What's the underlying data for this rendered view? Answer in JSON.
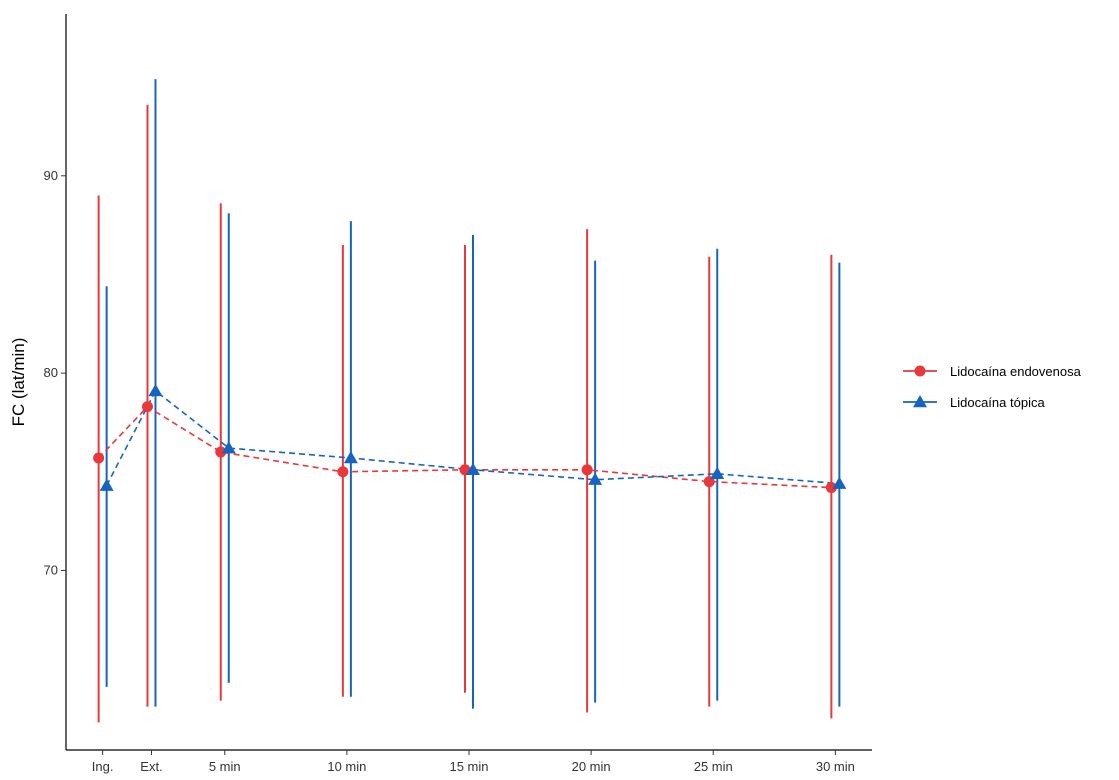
{
  "chart_data": {
    "type": "line",
    "title": "",
    "xlabel": "",
    "ylabel": "FC (lat/min)",
    "categories": [
      "Ing.",
      "Ext.",
      "5 min",
      "10 min",
      "15 min",
      "20 min",
      "25 min",
      "30 min"
    ],
    "x_values": [
      0,
      2,
      5,
      10,
      15,
      20,
      25,
      30
    ],
    "xlim": [
      -1.5,
      31.5
    ],
    "ylim": [
      60.9,
      98.2
    ],
    "yticks": [
      70,
      80,
      90
    ],
    "grid": false,
    "legend_position": "right",
    "error_bars": true,
    "series": [
      {
        "name": "Lidocaína endovenosa",
        "color": "#e8383b",
        "marker": "circle",
        "line_style": "dashed",
        "values": [
          75.7,
          78.3,
          76.0,
          75.0,
          75.1,
          75.1,
          74.5,
          74.2
        ],
        "lower": [
          62.3,
          63.1,
          63.4,
          63.6,
          63.8,
          62.8,
          63.1,
          62.5
        ],
        "upper": [
          89.0,
          93.6,
          88.6,
          86.5,
          86.5,
          87.3,
          85.9,
          86.0
        ]
      },
      {
        "name": "Lidocaína tópica",
        "color": "#1565c0",
        "marker": "triangle",
        "line_style": "dashed",
        "values": [
          74.3,
          79.1,
          76.2,
          75.7,
          75.1,
          74.6,
          74.9,
          74.4
        ],
        "lower": [
          64.1,
          63.1,
          64.3,
          63.6,
          63.0,
          63.3,
          63.4,
          63.1
        ],
        "upper": [
          84.4,
          94.9,
          88.1,
          87.7,
          87.0,
          85.7,
          86.3,
          85.6
        ]
      }
    ]
  }
}
